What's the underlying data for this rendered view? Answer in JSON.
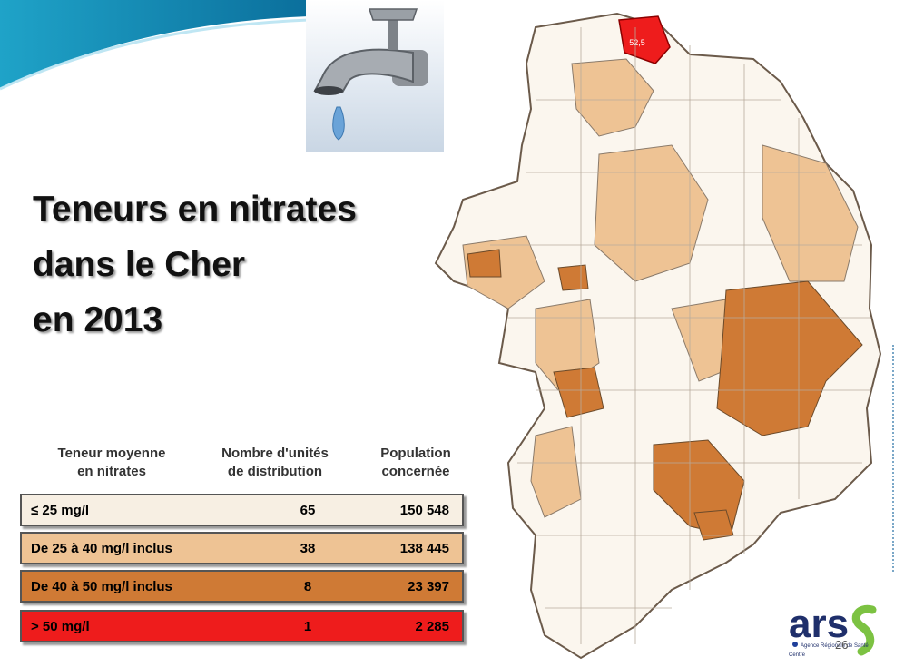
{
  "title_lines": [
    "Teneurs en nitrates",
    "dans le Cher",
    "en 2013"
  ],
  "table": {
    "headers": [
      "Teneur moyenne\nen nitrates",
      "Nombre d'unités\nde distribution",
      "Population\nconcernée"
    ],
    "rows": [
      {
        "range": "≤ 25 mg/l",
        "units": "65",
        "population": "150 548",
        "color": "#f7efe3"
      },
      {
        "range": "De 25 à 40 mg/l inclus",
        "units": "38",
        "population": "138 445",
        "color": "#eec394"
      },
      {
        "range": "De 40 à 50 mg/l inclus",
        "units": "8",
        "population": "23 397",
        "color": "#cf7a35"
      },
      {
        "range": "> 50 mg/l",
        "units": "1",
        "population": "2 285",
        "color": "#ee1c1c"
      }
    ]
  },
  "map_label": "52,5",
  "logo": {
    "text": "ars",
    "subtitle_1": "Agence Régionale de Santé",
    "subtitle_2": "Centre"
  },
  "page_number": "26",
  "icons": [
    "faucet-image",
    "cher-map",
    "ars-logo"
  ]
}
